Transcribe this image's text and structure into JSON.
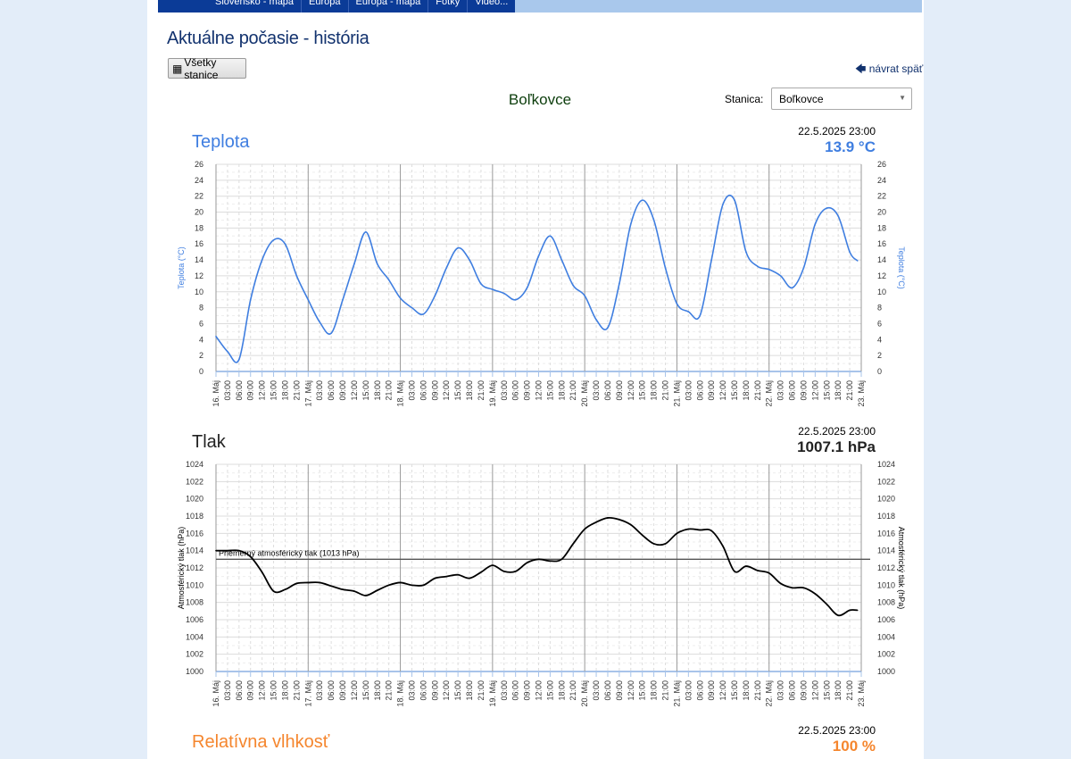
{
  "nav": {
    "items": [
      "Slovensko - mapa",
      "Európa",
      "Európa - mapa",
      "Fotky",
      "Video..."
    ]
  },
  "page_title": "Aktuálne počasie - história",
  "all_stations_button": "Všetky stanice",
  "back_link": "návrat späť",
  "station_name": "Boľkovce",
  "station_select": {
    "label": "Stanica:",
    "value": "Boľkovce"
  },
  "colors": {
    "temperature": "#3f7ee0",
    "pressure": "#000000",
    "humidity": "#f5862e",
    "title_blue": "#12326e"
  },
  "x_tick_labels": [
    "16. Máj",
    "03:00",
    "06:00",
    "09:00",
    "12:00",
    "15:00",
    "18:00",
    "21:00",
    "17. Máj",
    "03:00",
    "06:00",
    "09:00",
    "12:00",
    "15:00",
    "18:00",
    "21:00",
    "18. Máj",
    "03:00",
    "06:00",
    "09:00",
    "12:00",
    "15:00",
    "18:00",
    "21:00",
    "19. Máj",
    "03:00",
    "06:00",
    "09:00",
    "12:00",
    "15:00",
    "18:00",
    "21:00",
    "20. Máj",
    "03:00",
    "06:00",
    "09:00",
    "12:00",
    "15:00",
    "18:00",
    "21:00",
    "21. Máj",
    "03:00",
    "06:00",
    "09:00",
    "12:00",
    "15:00",
    "18:00",
    "21:00",
    "22. Máj",
    "03:00",
    "06:00",
    "09:00",
    "12:00",
    "15:00",
    "18:00",
    "21:00",
    "23. Máj"
  ],
  "sections": {
    "temperature": {
      "title": "Teplota",
      "time": "22.5.2025 23:00",
      "value": "13.9 °C"
    },
    "pressure": {
      "title": "Tlak",
      "time": "22.5.2025 23:00",
      "value": "1007.1 hPa"
    },
    "humidity": {
      "title": "Relatívna vlhkosť",
      "time": "22.5.2025 23:00",
      "value": "100 %"
    }
  },
  "chart_data": [
    {
      "type": "line",
      "ylabel": "Teplota (°C)",
      "ylim": [
        0,
        26
      ],
      "yticks": [
        0,
        2,
        4,
        6,
        8,
        10,
        12,
        14,
        16,
        18,
        20,
        22,
        24,
        26
      ],
      "grid": true,
      "color": "#3f7ee0",
      "x": [
        "16.5. 00:00",
        "16.5. 03:00",
        "16.5. 06:00",
        "16.5. 09:00",
        "16.5. 12:00",
        "16.5. 15:00",
        "16.5. 18:00",
        "16.5. 21:00",
        "17.5. 00:00",
        "17.5. 03:00",
        "17.5. 06:00",
        "17.5. 09:00",
        "17.5. 12:00",
        "17.5. 15:00",
        "17.5. 18:00",
        "17.5. 21:00",
        "18.5. 00:00",
        "18.5. 03:00",
        "18.5. 06:00",
        "18.5. 09:00",
        "18.5. 12:00",
        "18.5. 15:00",
        "18.5. 18:00",
        "18.5. 21:00",
        "19.5. 00:00",
        "19.5. 03:00",
        "19.5. 06:00",
        "19.5. 09:00",
        "19.5. 12:00",
        "19.5. 15:00",
        "19.5. 18:00",
        "19.5. 21:00",
        "20.5. 00:00",
        "20.5. 03:00",
        "20.5. 06:00",
        "20.5. 09:00",
        "20.5. 12:00",
        "20.5. 15:00",
        "20.5. 18:00",
        "20.5. 21:00",
        "21.5. 00:00",
        "21.5. 03:00",
        "21.5. 06:00",
        "21.5. 09:00",
        "21.5. 12:00",
        "21.5. 15:00",
        "21.5. 18:00",
        "21.5. 21:00",
        "22.5. 00:00",
        "22.5. 03:00",
        "22.5. 06:00",
        "22.5. 09:00",
        "22.5. 12:00",
        "22.5. 15:00",
        "22.5. 18:00",
        "22.5. 21:00",
        "22.5. 23:00"
      ],
      "values": [
        4.4,
        2.5,
        1.5,
        9,
        14,
        16.5,
        16,
        12,
        9,
        6.2,
        4.8,
        9,
        13.5,
        17.5,
        13.5,
        11.5,
        9.2,
        8,
        7.2,
        9.5,
        13,
        15.5,
        14,
        11,
        10.3,
        9.8,
        9,
        10.5,
        14.5,
        17,
        14,
        10.8,
        9.5,
        6.5,
        5.5,
        11,
        18.5,
        21.5,
        19,
        13,
        8.5,
        7.5,
        7,
        14,
        21,
        21.5,
        15,
        13.2,
        12.8,
        12,
        10.5,
        13,
        18.5,
        20.5,
        19.5,
        15,
        13.9
      ]
    },
    {
      "type": "line",
      "ylabel": "Atmosférický tlak (hPa)",
      "ylim": [
        1000,
        1024
      ],
      "yticks": [
        1000,
        1002,
        1004,
        1006,
        1008,
        1010,
        1012,
        1014,
        1016,
        1018,
        1020,
        1022,
        1024
      ],
      "grid": true,
      "color": "#000000",
      "reference_line": {
        "value": 1013,
        "label": "Priemerný atmosférický tlak (1013 hPa)"
      },
      "x": [
        "16.5. 00:00",
        "16.5. 03:00",
        "16.5. 06:00",
        "16.5. 09:00",
        "16.5. 12:00",
        "16.5. 15:00",
        "16.5. 18:00",
        "16.5. 21:00",
        "17.5. 00:00",
        "17.5. 03:00",
        "17.5. 06:00",
        "17.5. 09:00",
        "17.5. 12:00",
        "17.5. 15:00",
        "17.5. 18:00",
        "17.5. 21:00",
        "18.5. 00:00",
        "18.5. 03:00",
        "18.5. 06:00",
        "18.5. 09:00",
        "18.5. 12:00",
        "18.5. 15:00",
        "18.5. 18:00",
        "18.5. 21:00",
        "19.5. 00:00",
        "19.5. 03:00",
        "19.5. 06:00",
        "19.5. 09:00",
        "19.5. 12:00",
        "19.5. 15:00",
        "19.5. 18:00",
        "19.5. 21:00",
        "20.5. 00:00",
        "20.5. 03:00",
        "20.5. 06:00",
        "20.5. 09:00",
        "20.5. 12:00",
        "20.5. 15:00",
        "20.5. 18:00",
        "20.5. 21:00",
        "21.5. 00:00",
        "21.5. 03:00",
        "21.5. 06:00",
        "21.5. 09:00",
        "21.5. 12:00",
        "21.5. 15:00",
        "21.5. 18:00",
        "21.5. 21:00",
        "22.5. 00:00",
        "22.5. 03:00",
        "22.5. 06:00",
        "22.5. 09:00",
        "22.5. 12:00",
        "22.5. 15:00",
        "22.5. 18:00",
        "22.5. 21:00",
        "22.5. 23:00"
      ],
      "values": [
        1014,
        1014,
        1014,
        1013.3,
        1011.5,
        1009.3,
        1009.5,
        1010.2,
        1010.3,
        1010.3,
        1009.9,
        1009.5,
        1009.3,
        1008.8,
        1009.4,
        1010,
        1010.3,
        1010,
        1010,
        1010.8,
        1011,
        1011.2,
        1010.8,
        1011.5,
        1012.3,
        1011.6,
        1011.6,
        1012.6,
        1013,
        1012.8,
        1013,
        1014.8,
        1016.5,
        1017.3,
        1017.8,
        1017.6,
        1017,
        1015.8,
        1014.8,
        1014.8,
        1016,
        1016.5,
        1016.4,
        1016.3,
        1014.5,
        1011.6,
        1012.2,
        1011.7,
        1011.4,
        1010.2,
        1009.7,
        1009.7,
        1009,
        1007.8,
        1006.5,
        1007.1,
        1007.1
      ]
    }
  ]
}
